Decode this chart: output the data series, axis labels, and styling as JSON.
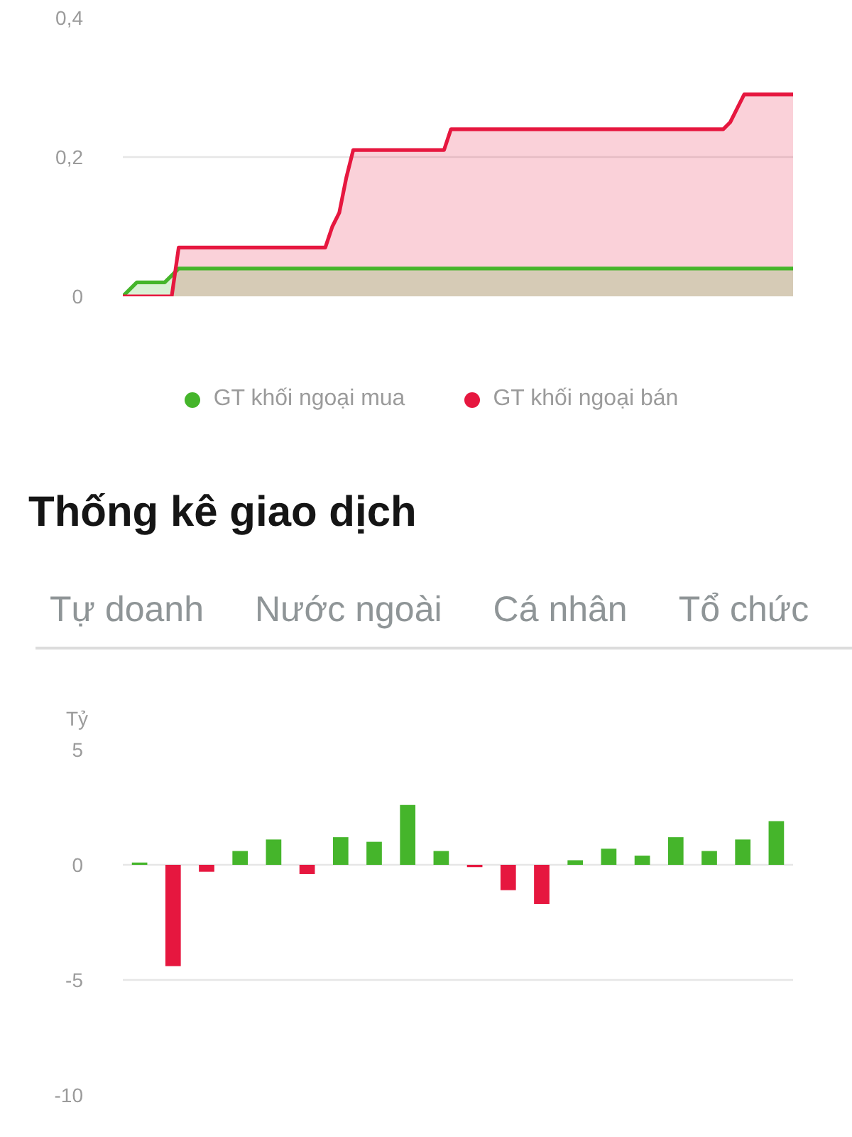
{
  "chart_data": [
    {
      "type": "area",
      "categories": [
        null,
        null,
        null,
        null,
        null,
        null,
        null,
        null,
        null,
        null,
        null,
        null,
        null,
        null,
        null,
        null,
        null,
        null,
        null,
        null,
        null,
        null,
        null,
        null,
        null,
        null,
        null,
        null,
        null,
        null,
        null,
        null,
        null,
        null,
        null,
        null,
        null,
        null,
        null,
        null,
        null,
        null,
        null,
        null,
        null,
        null,
        null,
        null,
        null,
        null,
        null,
        null,
        null,
        null,
        null,
        null,
        null,
        null,
        null,
        null,
        null,
        null,
        null,
        null,
        null,
        null,
        null,
        null,
        null,
        null,
        null,
        null,
        null,
        null,
        null,
        null,
        null,
        null,
        null,
        null,
        null,
        null,
        null,
        null,
        null,
        null,
        null,
        null,
        null,
        null,
        null,
        null,
        null,
        null,
        null,
        null,
        null
      ],
      "series": [
        {
          "name": "GT khối ngoại mua",
          "color": "#45b52b",
          "values": [
            0,
            0.01,
            0.02,
            0.02,
            0.02,
            0.02,
            0.02,
            0.03,
            0.04,
            0.04,
            0.04,
            0.04,
            0.04,
            0.04,
            0.04,
            0.04,
            0.04,
            0.04,
            0.04,
            0.04,
            0.04,
            0.04,
            0.04,
            0.04,
            0.04,
            0.04,
            0.04,
            0.04,
            0.04,
            0.04,
            0.04,
            0.04,
            0.04,
            0.04,
            0.04,
            0.04,
            0.04,
            0.04,
            0.04,
            0.04,
            0.04,
            0.04,
            0.04,
            0.04,
            0.04,
            0.04,
            0.04,
            0.04,
            0.04,
            0.04,
            0.04,
            0.04,
            0.04,
            0.04,
            0.04,
            0.04,
            0.04,
            0.04,
            0.04,
            0.04,
            0.04,
            0.04,
            0.04,
            0.04,
            0.04,
            0.04,
            0.04,
            0.04,
            0.04,
            0.04,
            0.04,
            0.04,
            0.04,
            0.04,
            0.04,
            0.04,
            0.04,
            0.04,
            0.04,
            0.04,
            0.04,
            0.04,
            0.04,
            0.04,
            0.04,
            0.04,
            0.04,
            0.04,
            0.04,
            0.04,
            0.04,
            0.04,
            0.04,
            0.04,
            0.04,
            0.04,
            0.04
          ]
        },
        {
          "name": "GT khối ngoại bán",
          "color": "#e6173f",
          "values": [
            0,
            0,
            0,
            0,
            0,
            0,
            0,
            0,
            0.07,
            0.07,
            0.07,
            0.07,
            0.07,
            0.07,
            0.07,
            0.07,
            0.07,
            0.07,
            0.07,
            0.07,
            0.07,
            0.07,
            0.07,
            0.07,
            0.07,
            0.07,
            0.07,
            0.07,
            0.07,
            0.07,
            0.1,
            0.12,
            0.17,
            0.21,
            0.21,
            0.21,
            0.21,
            0.21,
            0.21,
            0.21,
            0.21,
            0.21,
            0.21,
            0.21,
            0.21,
            0.21,
            0.21,
            0.24,
            0.24,
            0.24,
            0.24,
            0.24,
            0.24,
            0.24,
            0.24,
            0.24,
            0.24,
            0.24,
            0.24,
            0.24,
            0.24,
            0.24,
            0.24,
            0.24,
            0.24,
            0.24,
            0.24,
            0.24,
            0.24,
            0.24,
            0.24,
            0.24,
            0.24,
            0.24,
            0.24,
            0.24,
            0.24,
            0.24,
            0.24,
            0.24,
            0.24,
            0.24,
            0.24,
            0.24,
            0.24,
            0.24,
            0.24,
            0.25,
            0.27,
            0.29,
            0.29,
            0.29,
            0.29,
            0.29,
            0.29,
            0.29,
            0.29
          ]
        }
      ],
      "ylim": [
        0,
        0.4
      ],
      "yticks": [
        0,
        {
          "value": 0.2,
          "label": "0,2"
        },
        {
          "value": 0.4,
          "label": "0,4"
        }
      ],
      "grid": "y",
      "legend": "bottom"
    },
    {
      "type": "bar",
      "title": "Thống kê giao dịch",
      "annotations": [
        "Tự doanh",
        "Nước ngoài",
        "Cá nhân",
        "Tổ chức"
      ],
      "ylabel": "Tỷ",
      "categories": [
        null,
        null,
        null,
        null,
        null,
        null,
        null,
        null,
        null,
        null,
        null,
        null,
        null,
        null,
        null,
        null,
        null,
        null,
        null,
        null
      ],
      "values": [
        0.1,
        -4.4,
        -0.3,
        0.6,
        1.1,
        -0.4,
        1.2,
        1.0,
        2.6,
        0.6,
        -0.1,
        -1.1,
        -1.7,
        0.2,
        0.7,
        0.4,
        1.2,
        0.6,
        1.1,
        1.9
      ],
      "colors": [
        "#45b52b",
        "#e6173f",
        "#e6173f",
        "#45b52b",
        "#45b52b",
        "#e6173f",
        "#45b52b",
        "#45b52b",
        "#45b52b",
        "#45b52b",
        "#e6173f",
        "#e6173f",
        "#e6173f",
        "#45b52b",
        "#45b52b",
        "#45b52b",
        "#45b52b",
        "#45b52b",
        "#45b52b",
        "#45b52b"
      ],
      "ylim": [
        -10,
        5
      ],
      "yticks": [
        -10,
        -5,
        0,
        5
      ],
      "grid": "y"
    }
  ]
}
